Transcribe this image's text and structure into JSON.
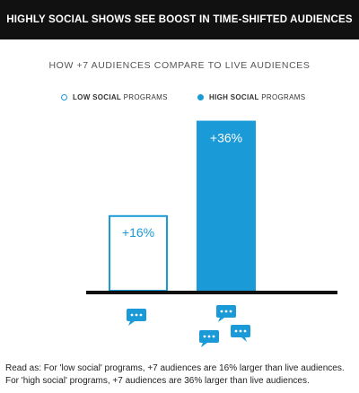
{
  "banner": {
    "title": "HIGHLY SOCIAL SHOWS SEE BOOST IN TIME-SHIFTED AUDIENCES"
  },
  "legend": {
    "low_bold": "LOW SOCIAL",
    "low_rest": " PROGRAMS",
    "high_bold": "HIGH SOCIAL",
    "high_rest": " PROGRAMS"
  },
  "colors": {
    "accent": "#1a9ad7",
    "axis": "#111111",
    "white": "#ffffff"
  },
  "chart_data": {
    "type": "bar",
    "title": "HOW +7 AUDIENCES COMPARE TO LIVE AUDIENCES",
    "categories": [
      "LOW SOCIAL PROGRAMS",
      "HIGH SOCIAL PROGRAMS"
    ],
    "values": [
      16,
      36
    ],
    "labels": [
      "+16%",
      "+36%"
    ],
    "ylim": [
      0,
      38
    ],
    "grid": false,
    "legend": "top",
    "icons": [
      "chat-bubble-icon",
      "chat-bubbles-cluster-icon"
    ]
  },
  "caption": {
    "line1": "Read as: For 'low social' programs, +7 audiences are 16% larger than live audiences.",
    "line2": "For 'high social' programs, +7 audiences are 36% larger than live audiences."
  }
}
